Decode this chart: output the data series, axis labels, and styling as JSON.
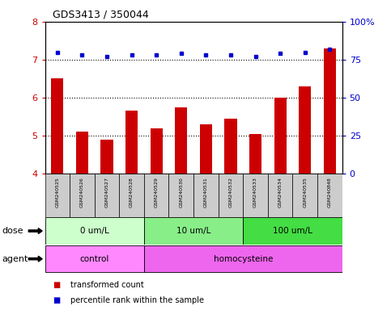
{
  "title": "GDS3413 / 350044",
  "samples": [
    "GSM240525",
    "GSM240526",
    "GSM240527",
    "GSM240528",
    "GSM240529",
    "GSM240530",
    "GSM240531",
    "GSM240532",
    "GSM240533",
    "GSM240534",
    "GSM240535",
    "GSM240848"
  ],
  "transformed_count": [
    6.5,
    5.1,
    4.9,
    5.65,
    5.2,
    5.75,
    5.3,
    5.45,
    5.05,
    6.0,
    6.3,
    7.3
  ],
  "percentile_rank": [
    80,
    78,
    77,
    78,
    78,
    79,
    78,
    78,
    77,
    79,
    80,
    82
  ],
  "ylim_left": [
    4,
    8
  ],
  "ylim_right": [
    0,
    100
  ],
  "yticks_left": [
    4,
    5,
    6,
    7,
    8
  ],
  "yticks_right": [
    0,
    25,
    50,
    75,
    100
  ],
  "bar_color": "#CC0000",
  "dot_color": "#0000CC",
  "bar_width": 0.5,
  "dose_groups": [
    {
      "label": "0 um/L",
      "start": 0,
      "end": 4,
      "color": "#ccffcc"
    },
    {
      "label": "10 um/L",
      "start": 4,
      "end": 8,
      "color": "#88ee88"
    },
    {
      "label": "100 um/L",
      "start": 8,
      "end": 12,
      "color": "#44dd44"
    }
  ],
  "agent_groups": [
    {
      "label": "control",
      "start": 0,
      "end": 4,
      "color": "#ff88ff"
    },
    {
      "label": "homocysteine",
      "start": 4,
      "end": 12,
      "color": "#ee66ee"
    }
  ],
  "dose_label": "dose",
  "agent_label": "agent",
  "legend_items": [
    {
      "label": "transformed count",
      "color": "#CC0000"
    },
    {
      "label": "percentile rank within the sample",
      "color": "#0000CC"
    }
  ],
  "grid_dotted_at": [
    5,
    6,
    7
  ],
  "grid_color": "black",
  "bg_color": "white",
  "tick_label_color_left": "#CC0000",
  "tick_label_color_right": "#0000CC",
  "sample_box_color": "#cccccc"
}
